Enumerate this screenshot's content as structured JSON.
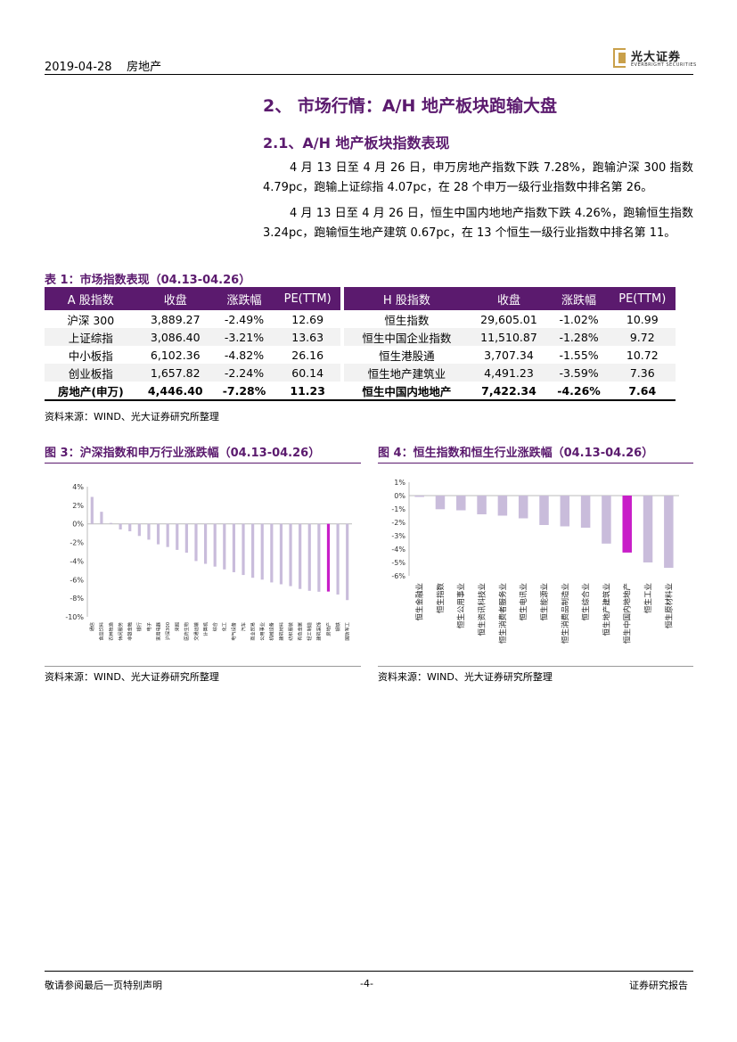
{
  "header": {
    "date": "2019-04-28",
    "industry": "房地产",
    "logo_cn": "光大证券",
    "logo_en": "EVERBRIGHT SECURITIES"
  },
  "section_title": "2、 市场行情：A/H 地产板块跑输大盘",
  "sub_title": "2.1、A/H 地产板块指数表现",
  "paragraphs": [
    "4 月 13 日至 4 月 26 日，申万房地产指数下跌 7.28%，跑输沪深 300 指数 4.79pc，跑输上证综指 4.07pc，在 28 个申万一级行业指数中排名第 26。",
    "4 月 13 日至 4 月 26 日，恒生中国内地地产指数下跌 4.26%，跑输恒生指数 3.24pc，跑输恒生地产建筑 0.67pc，在 13 个恒生一级行业指数中排名第 11。"
  ],
  "table": {
    "caption": "表 1：市场指数表现（04.13-04.26）",
    "headers": [
      "A 股指数",
      "收盘",
      "涨跌幅",
      "PE(TTM)",
      "H 股指数",
      "收盘",
      "涨跌幅",
      "PE(TTM)"
    ],
    "rows": [
      [
        "沪深 300",
        "3,889.27",
        "-2.49%",
        "12.69",
        "恒生指数",
        "29,605.01",
        "-1.02%",
        "10.99"
      ],
      [
        "上证综指",
        "3,086.40",
        "-3.21%",
        "13.63",
        "恒生中国企业指数",
        "11,510.87",
        "-1.28%",
        "9.72"
      ],
      [
        "中小板指",
        "6,102.36",
        "-4.82%",
        "26.16",
        "恒生港股通",
        "3,707.34",
        "-1.55%",
        "10.72"
      ],
      [
        "创业板指",
        "1,657.82",
        "-2.24%",
        "60.14",
        "恒生地产建筑业",
        "4,491.23",
        "-3.59%",
        "7.36"
      ],
      [
        "房地产(申万)",
        "4,446.40",
        "-7.28%",
        "11.23",
        "恒生中国内地地产",
        "7,422.34",
        "-4.26%",
        "7.64"
      ]
    ],
    "source": "资料来源：WIND、光大证券研究所整理"
  },
  "figures": {
    "fig3_caption": "图 3：沪深指数和申万行业涨跌幅（04.13-04.26）",
    "fig3_source": "资料来源：WIND、光大证券研究所整理",
    "fig4_caption": "图 4：恒生指数和恒生行业涨跌幅（04.13-04.26）",
    "fig4_source": "资料来源：WIND、光大证券研究所整理"
  },
  "chart_data": [
    {
      "type": "bar",
      "title": "图 3：沪深指数和申万行业涨跌幅（04.13-04.26）",
      "categories": [
        "通信",
        "食品饮料",
        "农林牧渔",
        "休闲服务",
        "非银金融",
        "银行",
        "电子",
        "家用电器",
        "沪深300",
        "采掘",
        "医药生物",
        "交通运输",
        "计算机",
        "综合",
        "化工",
        "电气设备",
        "汽车",
        "商业贸易",
        "公用事业",
        "机械设备",
        "建筑材料",
        "纺织服装",
        "有色金属",
        "轻工制造",
        "建筑装饰",
        "房地产",
        "钢铁",
        "国防军工"
      ],
      "values": [
        2.9,
        1.3,
        0.1,
        -0.6,
        -0.8,
        -1.3,
        -1.7,
        -2.2,
        -2.49,
        -2.8,
        -3.1,
        -4.0,
        -4.3,
        -4.6,
        -4.9,
        -5.2,
        -5.5,
        -5.8,
        -6.0,
        -6.3,
        -6.5,
        -6.7,
        -7.0,
        -7.2,
        -7.3,
        -7.28,
        -7.6,
        -8.2
      ],
      "highlight": "房地产",
      "ylim": [
        -10,
        4
      ],
      "yticks": [
        "4%",
        "2%",
        "0%",
        "-2%",
        "-4%",
        "-6%",
        "-8%",
        "-10%"
      ],
      "colors": {
        "bar": "#c9bcdb",
        "highlight": "#c81ec8"
      }
    },
    {
      "type": "bar",
      "title": "图 4：恒生指数和恒生行业涨跌幅（04.13-04.26）",
      "categories": [
        "恒生金融业",
        "恒生指数",
        "恒生公用事业",
        "恒生资讯科技业",
        "恒生消费者服务业",
        "恒生电讯业",
        "恒生能源业",
        "恒生消费品制造业",
        "恒生综合业",
        "恒生地产建筑业",
        "恒生中国内地地产",
        "恒生工业",
        "恒生原材料业"
      ],
      "values": [
        -0.1,
        -1.02,
        -1.1,
        -1.4,
        -1.5,
        -1.7,
        -2.2,
        -2.3,
        -2.4,
        -3.59,
        -4.26,
        -5.0,
        -5.4
      ],
      "highlight": "恒生中国内地地产",
      "ylim": [
        -6,
        1
      ],
      "yticks": [
        "1%",
        "0%",
        "-1%",
        "-2%",
        "-3%",
        "-4%",
        "-5%",
        "-6%"
      ],
      "colors": {
        "bar": "#c9bcdb",
        "highlight": "#c81ec8"
      }
    }
  ],
  "footer": {
    "left": "敬请参阅最后一页特别声明",
    "page": "-4-",
    "right": "证券研究报告"
  }
}
